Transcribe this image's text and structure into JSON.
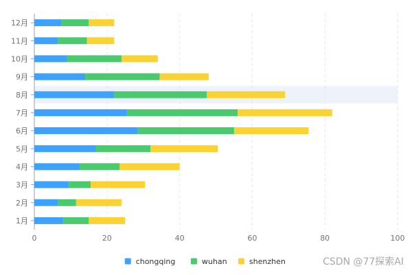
{
  "chart_data": {
    "type": "bar",
    "orientation": "horizontal",
    "stacked": true,
    "categories": [
      "1月",
      "2月",
      "3月",
      "4月",
      "5月",
      "6月",
      "7月",
      "8月",
      "9月",
      "10月",
      "11月",
      "12月"
    ],
    "series": [
      {
        "name": "chongqing",
        "color": "#3ea1fb",
        "values": [
          8,
          6.5,
          9.5,
          12.5,
          17,
          28.5,
          25.5,
          22,
          14,
          9,
          6.5,
          7.5
        ]
      },
      {
        "name": "wuhan",
        "color": "#4ac96f",
        "values": [
          7,
          5,
          6,
          11,
          15,
          26.5,
          30.5,
          25.5,
          20.5,
          15,
          8,
          7.5
        ]
      },
      {
        "name": "shenzhen",
        "color": "#fad332",
        "values": [
          10,
          12.5,
          15,
          16.5,
          18.5,
          20.5,
          26,
          21.5,
          13.5,
          10,
          7.5,
          7
        ]
      }
    ],
    "highlight_category": "8月",
    "xlim": [
      0,
      100
    ],
    "xticks": [
      0,
      20,
      40,
      60,
      80,
      100
    ],
    "legend_position": "bottom-center",
    "grid": "vertical-dashed"
  },
  "watermark": "CSDN @77探索AI"
}
